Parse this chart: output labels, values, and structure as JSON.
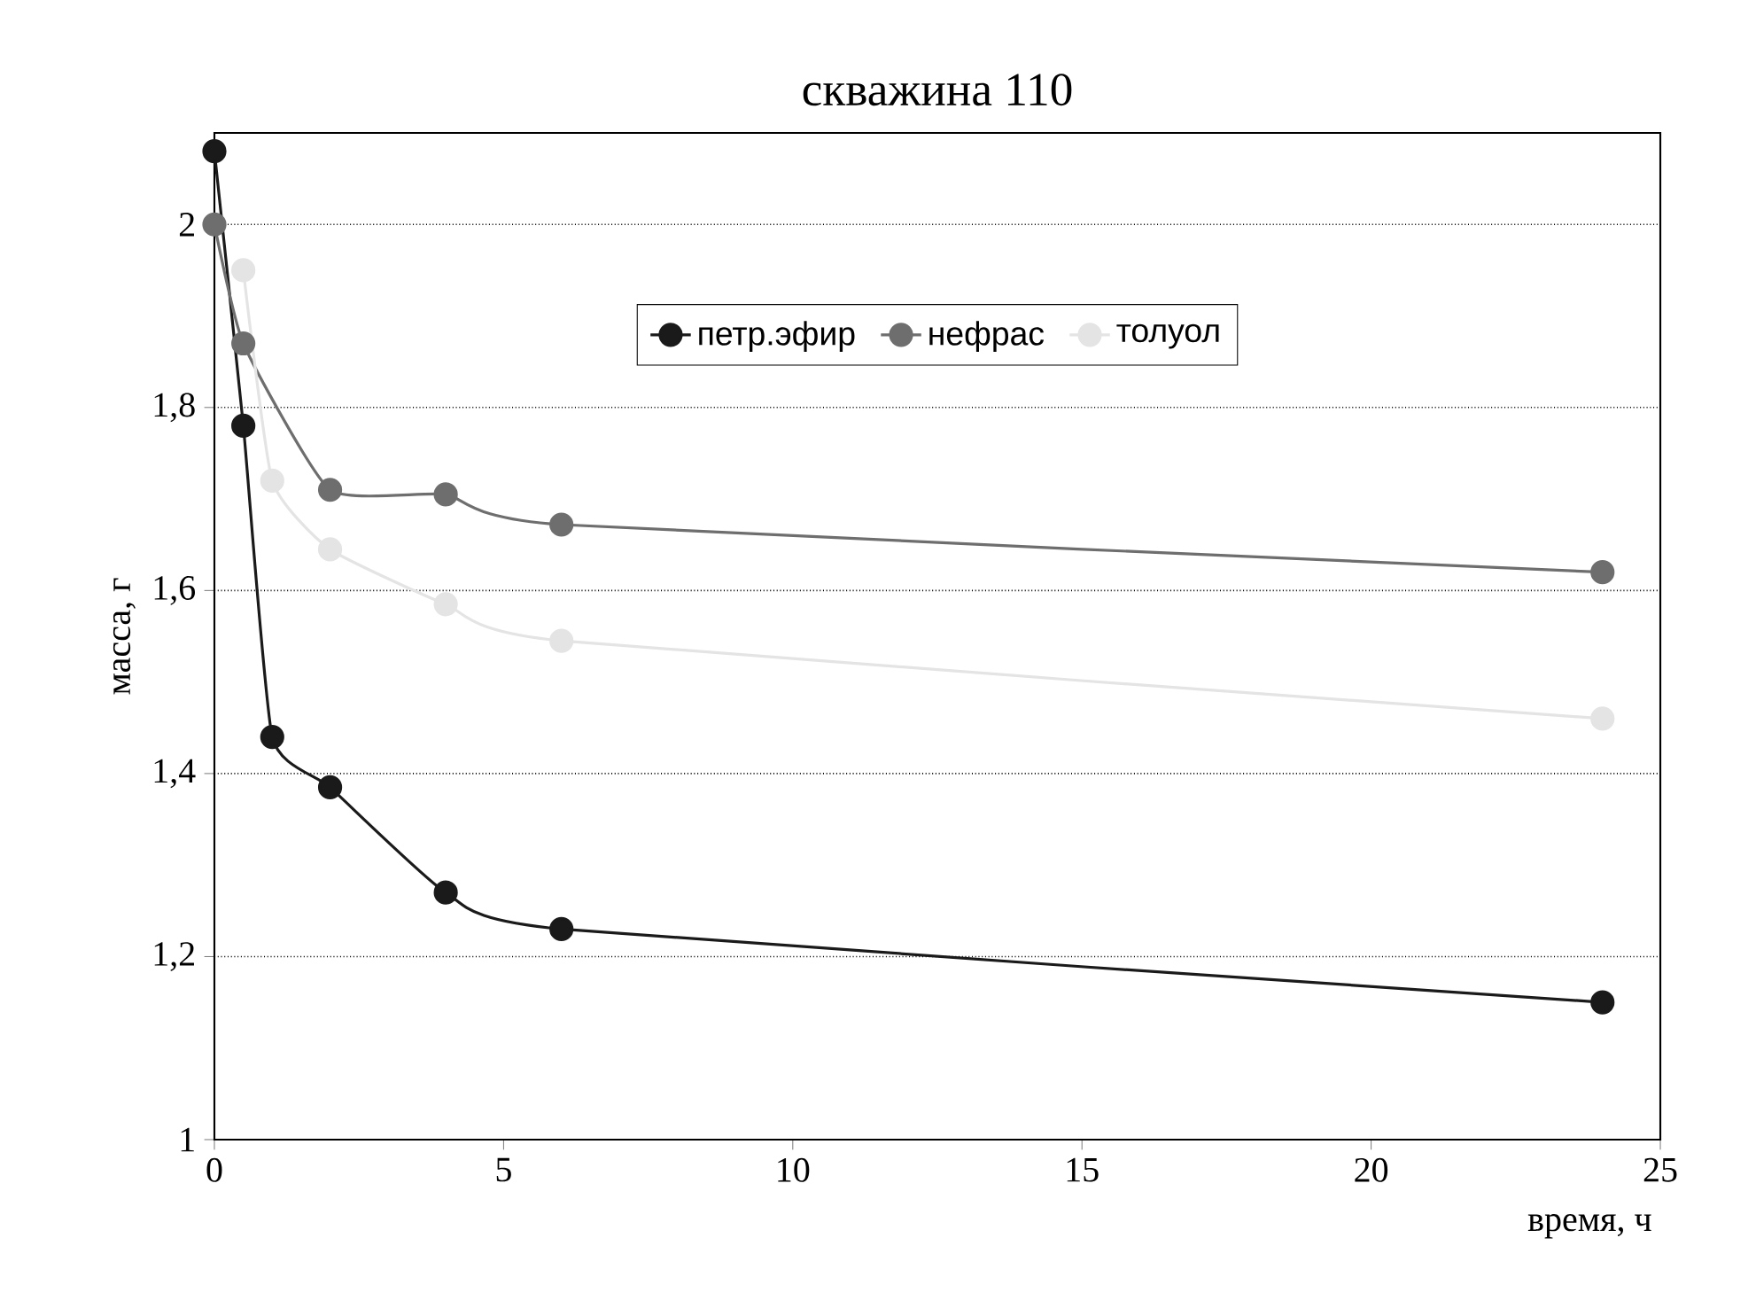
{
  "chart_data": {
    "type": "line",
    "title": "скважина 110",
    "xlabel": "время, ч",
    "ylabel": "масса, г",
    "xlim": [
      0,
      25
    ],
    "xticks": [
      0,
      5,
      10,
      15,
      20,
      25
    ],
    "ylim": [
      1,
      2.1
    ],
    "yticks": [
      {
        "value": 1,
        "label": "1"
      },
      {
        "value": 1.2,
        "label": "1,2"
      },
      {
        "value": 1.4,
        "label": "1,4"
      },
      {
        "value": 1.6,
        "label": "1,6"
      },
      {
        "value": 1.8,
        "label": "1,8"
      },
      {
        "value": 2,
        "label": "2"
      }
    ],
    "grid": "y",
    "legend": "top",
    "marker": "circle",
    "line_style": "solid",
    "series": [
      {
        "name": "петр.эфир",
        "color": "#1a1a1a",
        "x": [
          0,
          0.5,
          1,
          2,
          4,
          6,
          24
        ],
        "values": [
          2.08,
          1.78,
          1.44,
          1.385,
          1.27,
          1.23,
          1.15
        ]
      },
      {
        "name": "нефрас",
        "color": "#6e6e6e",
        "x": [
          0,
          0.5,
          2,
          4,
          6,
          24
        ],
        "values": [
          2.0,
          1.87,
          1.71,
          1.705,
          1.672,
          1.62
        ]
      },
      {
        "name": "толуол",
        "color": "#e4e4e4",
        "x": [
          0.5,
          1,
          2,
          4,
          6,
          24
        ],
        "values": [
          1.95,
          1.72,
          1.645,
          1.585,
          1.545,
          1.46
        ]
      }
    ]
  }
}
